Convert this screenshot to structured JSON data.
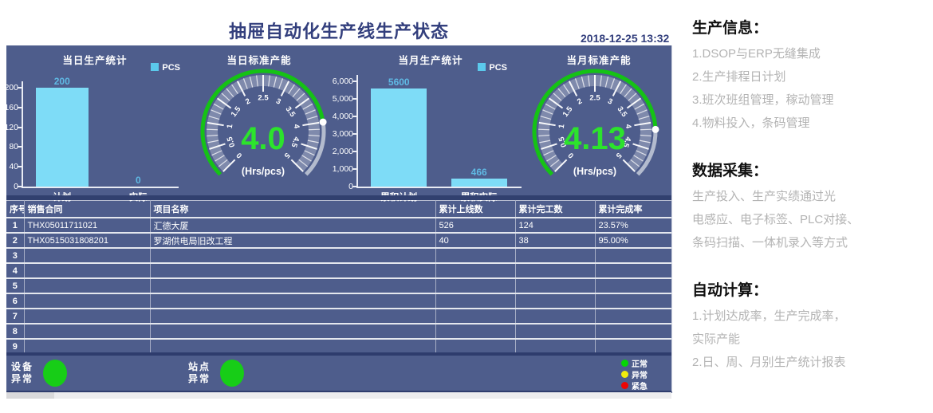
{
  "header": {
    "title": "抽屉自动化生产线生产状态",
    "datetime": "2018-12-25 13:32"
  },
  "colors": {
    "bar_fill": "#7edcf7",
    "bar_label": "#5fb9e4",
    "gauge_progress_green": "#15c215",
    "gauge_remainder_gray": "#c6cbd9",
    "gauge_value_green": "#2ce32c",
    "status_light_green": "#17cd17",
    "legend_green": "#05d705",
    "legend_yellow": "#f0ec0c",
    "legend_red": "#ec0505",
    "dashboard_bg": "#4e5d8c"
  },
  "charts": [
    {
      "type": "bar",
      "title": "当日生产统计",
      "legend": "PCS",
      "categories": [
        "计划",
        "实际"
      ],
      "values": [
        200,
        0
      ],
      "value_labels": [
        "200",
        "0"
      ],
      "ymax": 200,
      "yticks": [
        "200",
        "160",
        "120",
        "80",
        "40",
        "0"
      ]
    },
    {
      "type": "gauge",
      "title": "当日标准产能",
      "value": 4.0,
      "value_label": "4.0",
      "unit": "(Hrs/pcs)",
      "min": 0,
      "max": 5,
      "scale_labels": [
        "0",
        "0.5",
        "1",
        "1.5",
        "2",
        "2.5",
        "3",
        "3.5",
        "4",
        "4.5",
        "5"
      ]
    },
    {
      "type": "bar",
      "title": "当月生产统计",
      "legend": "PCS",
      "categories": [
        "累积计划",
        "累积实际"
      ],
      "values": [
        5600,
        466
      ],
      "value_labels": [
        "5600",
        "466"
      ],
      "ymax": 6000,
      "yticks": [
        "6,000",
        "5,000",
        "4,000",
        "3,000",
        "2,000",
        "1,000",
        "0"
      ]
    },
    {
      "type": "gauge",
      "title": "当月标准产能",
      "value": 4.13,
      "value_label": "4.13",
      "unit": "(Hrs/pcs)",
      "min": 0,
      "max": 5,
      "scale_labels": [
        "0",
        "0.5",
        "1",
        "1.5",
        "2",
        "2.5",
        "3",
        "3.5",
        "4",
        "4.5",
        "5"
      ]
    }
  ],
  "table": {
    "headers": [
      "序号",
      "销售合同",
      "项目名称",
      "累计上线数",
      "累计完工数",
      "累计完成率"
    ],
    "rows": [
      [
        "1",
        "THX05011711021",
        "汇德大厦",
        "526",
        "124",
        "23.57%"
      ],
      [
        "2",
        "THX0515031808201",
        "罗湖供电局旧改工程",
        "40",
        "38",
        "95.00%"
      ]
    ],
    "total_row_count": 9
  },
  "status_bar": {
    "indicators": [
      {
        "label": "设备异常",
        "state": "正常",
        "color": "#17cd17"
      },
      {
        "label": "站点异常",
        "state": "正常",
        "color": "#17cd17"
      }
    ],
    "legend": [
      {
        "label": "正常",
        "color": "#05d705"
      },
      {
        "label": "异常",
        "color": "#f0ec0c"
      },
      {
        "label": "紧急",
        "color": "#ec0505"
      }
    ]
  },
  "info_panel": {
    "sections": [
      {
        "heading": "生产信息：",
        "lines": [
          "1.DSOP与ERP无缝集成",
          "2.生产排程日计划",
          "3.班次班组管理，稼动管理",
          "4.物料投入，条码管理"
        ]
      },
      {
        "heading": "数据采集：",
        "lines": [
          "生产投入、生产实绩通过光",
          "电感应、电子标签、PLC对接、",
          "条码扫描、一体机录入等方式"
        ]
      },
      {
        "heading": "自动计算：",
        "lines": [
          "1.计划达成率，生产完成率，",
          "实际产能",
          "2.日、周、月别生产统计报表"
        ]
      }
    ]
  }
}
